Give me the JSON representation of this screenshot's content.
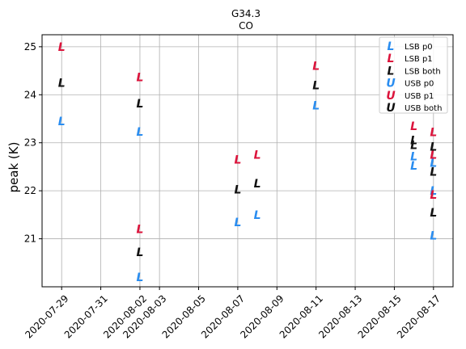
{
  "chart_data": {
    "type": "scatter",
    "title": "G34.3",
    "subtitle": "CO",
    "ylabel": "peak (K)",
    "xlabel": "",
    "xlim": [
      "2020-07-28",
      "2020-08-18"
    ],
    "ylim": [
      20.0,
      25.25
    ],
    "grid": true,
    "legend_placement": "top-right",
    "x_ticks": [
      "2020-07-29",
      "2020-07-31",
      "2020-08-02",
      "2020-08-03",
      "2020-08-05",
      "2020-08-07",
      "2020-08-09",
      "2020-08-11",
      "2020-08-13",
      "2020-08-15",
      "2020-08-17"
    ],
    "y_ticks": [
      21,
      22,
      23,
      24,
      25
    ],
    "series": [
      {
        "name": "LSB p0",
        "marker": "L",
        "color": "#2a8df0",
        "points": [
          {
            "x": "2020-07-29",
            "y": 23.45
          },
          {
            "x": "2020-08-02",
            "y": 23.23
          },
          {
            "x": "2020-08-02",
            "y": 20.2
          },
          {
            "x": "2020-08-07",
            "y": 21.35
          },
          {
            "x": "2020-08-08",
            "y": 21.5
          },
          {
            "x": "2020-08-11",
            "y": 23.78
          },
          {
            "x": "2020-08-16",
            "y": 22.72
          },
          {
            "x": "2020-08-16",
            "y": 22.52
          },
          {
            "x": "2020-08-17",
            "y": 22.58
          },
          {
            "x": "2020-08-17",
            "y": 22.0
          },
          {
            "x": "2020-08-17",
            "y": 21.07
          }
        ]
      },
      {
        "name": "LSB p1",
        "marker": "L",
        "color": "#dc143c",
        "points": [
          {
            "x": "2020-07-29",
            "y": 25.0
          },
          {
            "x": "2020-08-02",
            "y": 24.37
          },
          {
            "x": "2020-08-02",
            "y": 21.2
          },
          {
            "x": "2020-08-07",
            "y": 22.65
          },
          {
            "x": "2020-08-08",
            "y": 22.75
          },
          {
            "x": "2020-08-11",
            "y": 24.6
          },
          {
            "x": "2020-08-16",
            "y": 23.35
          },
          {
            "x": "2020-08-17",
            "y": 23.22
          },
          {
            "x": "2020-08-17",
            "y": 22.75
          },
          {
            "x": "2020-08-17",
            "y": 21.92
          }
        ]
      },
      {
        "name": "LSB both",
        "marker": "L",
        "color": "#111111",
        "points": [
          {
            "x": "2020-07-29",
            "y": 24.25
          },
          {
            "x": "2020-08-02",
            "y": 23.82
          },
          {
            "x": "2020-08-02",
            "y": 20.72
          },
          {
            "x": "2020-08-07",
            "y": 22.03
          },
          {
            "x": "2020-08-08",
            "y": 22.15
          },
          {
            "x": "2020-08-11",
            "y": 24.2
          },
          {
            "x": "2020-08-16",
            "y": 23.05
          },
          {
            "x": "2020-08-16",
            "y": 22.95
          },
          {
            "x": "2020-08-17",
            "y": 22.92
          },
          {
            "x": "2020-08-17",
            "y": 22.4
          },
          {
            "x": "2020-08-17",
            "y": 21.55
          }
        ]
      },
      {
        "name": "USB p0",
        "marker": "U",
        "color": "#2a8df0",
        "points": []
      },
      {
        "name": "USB p1",
        "marker": "U",
        "color": "#dc143c",
        "points": []
      },
      {
        "name": "USB both",
        "marker": "U",
        "color": "#111111",
        "points": []
      }
    ]
  }
}
